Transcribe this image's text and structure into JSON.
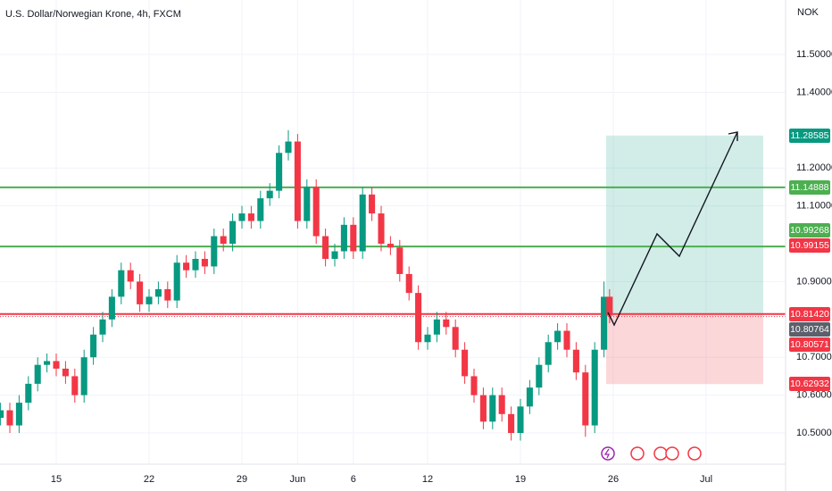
{
  "chart_data": {
    "type": "candlestick",
    "title": "U.S. Dollar/Norwegian Krone, 4h, FXCM",
    "currency": "NOK",
    "x": [
      -3,
      -2.5,
      -2,
      -1.5,
      -1,
      -0.5,
      0,
      0.5,
      1,
      1.5,
      2,
      2.5,
      3,
      3.5,
      4,
      4.5,
      5,
      5.5,
      6,
      6.5,
      7,
      7.5,
      8,
      8.5,
      9,
      9.5,
      10,
      10.5,
      11,
      11.5,
      12,
      12.5,
      13,
      13.5,
      14,
      14.5,
      15,
      15.5,
      16,
      16.5,
      17,
      17.5,
      18,
      18.5,
      19,
      19.5,
      20,
      20.5,
      21,
      21.5,
      22,
      22.5,
      23,
      23.5,
      24,
      24.5,
      25,
      25.5,
      26,
      26.5,
      27,
      27.5,
      28,
      28.5,
      29,
      29.5,
      29.8
    ],
    "open": [
      10.54,
      10.56,
      10.52,
      10.58,
      10.63,
      10.68,
      10.69,
      10.67,
      10.65,
      10.6,
      10.7,
      10.76,
      10.8,
      10.86,
      10.93,
      10.9,
      10.84,
      10.86,
      10.88,
      10.85,
      10.95,
      10.93,
      10.96,
      10.94,
      11.02,
      11.0,
      11.06,
      11.08,
      11.06,
      11.12,
      11.14,
      11.24,
      11.27,
      11.06,
      11.15,
      11.02,
      10.96,
      10.98,
      11.05,
      10.98,
      11.13,
      11.08,
      11.0,
      10.99,
      10.92,
      10.87,
      10.74,
      10.76,
      10.8,
      10.78,
      10.72,
      10.65,
      10.6,
      10.53,
      10.6,
      10.55,
      10.5,
      10.57,
      10.62,
      10.68,
      10.74,
      10.77,
      10.72,
      10.66,
      10.52,
      10.72,
      10.86
    ],
    "high": [
      10.58,
      10.58,
      10.6,
      10.65,
      10.7,
      10.71,
      10.71,
      10.69,
      10.67,
      10.72,
      10.78,
      10.82,
      10.88,
      10.95,
      10.95,
      10.92,
      10.88,
      10.9,
      10.9,
      10.97,
      10.97,
      10.98,
      10.98,
      11.04,
      11.04,
      11.08,
      11.1,
      11.1,
      11.14,
      11.16,
      11.26,
      11.3,
      11.29,
      11.17,
      11.17,
      11.04,
      11.0,
      11.07,
      11.07,
      11.15,
      11.15,
      11.1,
      11.02,
      11.01,
      10.94,
      10.89,
      10.78,
      10.82,
      10.82,
      10.8,
      10.74,
      10.67,
      10.62,
      10.62,
      10.62,
      10.57,
      10.59,
      10.64,
      10.7,
      10.76,
      10.79,
      10.79,
      10.74,
      10.68,
      10.74,
      10.9,
      10.88
    ],
    "low": [
      10.52,
      10.5,
      10.5,
      10.56,
      10.61,
      10.66,
      10.65,
      10.63,
      10.58,
      10.58,
      10.68,
      10.74,
      10.78,
      10.84,
      10.88,
      10.82,
      10.82,
      10.84,
      10.83,
      10.83,
      10.91,
      10.91,
      10.92,
      10.92,
      10.98,
      10.98,
      11.04,
      11.04,
      11.04,
      11.1,
      11.12,
      11.22,
      11.04,
      11.04,
      11.0,
      10.94,
      10.94,
      10.96,
      10.96,
      10.96,
      11.06,
      10.98,
      10.97,
      10.9,
      10.85,
      10.72,
      10.72,
      10.74,
      10.76,
      10.7,
      10.63,
      10.58,
      10.51,
      10.51,
      10.53,
      10.48,
      10.48,
      10.55,
      10.6,
      10.66,
      10.72,
      10.7,
      10.64,
      10.49,
      10.5,
      10.7,
      10.79
    ],
    "close": [
      10.56,
      10.52,
      10.58,
      10.63,
      10.68,
      10.69,
      10.67,
      10.65,
      10.6,
      10.7,
      10.76,
      10.8,
      10.86,
      10.93,
      10.9,
      10.84,
      10.86,
      10.88,
      10.85,
      10.95,
      10.93,
      10.96,
      10.94,
      11.02,
      11.0,
      11.06,
      11.08,
      11.06,
      11.12,
      11.14,
      11.24,
      11.27,
      11.06,
      11.15,
      11.02,
      10.96,
      10.98,
      11.05,
      10.98,
      11.13,
      11.08,
      11.0,
      10.99,
      10.92,
      10.87,
      10.74,
      10.76,
      10.8,
      10.78,
      10.72,
      10.65,
      10.6,
      10.53,
      10.6,
      10.55,
      10.5,
      10.57,
      10.62,
      10.68,
      10.74,
      10.77,
      10.72,
      10.66,
      10.52,
      10.72,
      10.86,
      10.81
    ],
    "up_color": "#089981",
    "down_color": "#f23645",
    "xlim": [
      -3.029,
      39.279
    ],
    "ylim": [
      10.4175,
      11.6439
    ],
    "xticks": [
      {
        "value": 0,
        "label": "15"
      },
      {
        "value": 5,
        "label": "22"
      },
      {
        "value": 10,
        "label": "29"
      },
      {
        "value": 13,
        "label": "Jun"
      },
      {
        "value": 16,
        "label": "6"
      },
      {
        "value": 20,
        "label": "12"
      },
      {
        "value": 25,
        "label": "19"
      },
      {
        "value": 30,
        "label": "26"
      },
      {
        "value": 35,
        "label": "Jul"
      }
    ],
    "yticks": [
      {
        "value": 11.5,
        "label": "11.50000"
      },
      {
        "value": 11.4,
        "label": "11.40000"
      },
      {
        "value": 11.2,
        "label": "11.20000"
      },
      {
        "value": 11.1,
        "label": "11.10000"
      },
      {
        "value": 10.9,
        "label": "10.90000"
      },
      {
        "value": 10.7,
        "label": "10.70000"
      },
      {
        "value": 10.6,
        "label": "10.60000"
      },
      {
        "value": 10.5,
        "label": "10.50000"
      }
    ],
    "grid": true,
    "levels": [
      {
        "value": 11.14888,
        "color": "#4caf50",
        "style": "solid"
      },
      {
        "value": 10.99268,
        "color": "#4caf50",
        "style": "solid"
      },
      {
        "value": 10.8142,
        "color": "#f23645",
        "style": "solid"
      },
      {
        "value": 10.80764,
        "color": "#f23645",
        "style": "dotted"
      }
    ],
    "price_tags": [
      {
        "value": 11.28585,
        "color": "#089981"
      },
      {
        "value": 11.14888,
        "color": "#4caf50"
      },
      {
        "value": 10.99268,
        "color": "#4caf50"
      },
      {
        "value": 10.99155,
        "color": "#f23645"
      },
      {
        "value": 10.8142,
        "label": "10.81420",
        "color": "#f23645"
      },
      {
        "value": 10.80764,
        "color": "#5d606b"
      },
      {
        "value": 10.80571,
        "color": "#f23645"
      },
      {
        "value": 10.62932,
        "color": "#f23645"
      }
    ]
  }
}
